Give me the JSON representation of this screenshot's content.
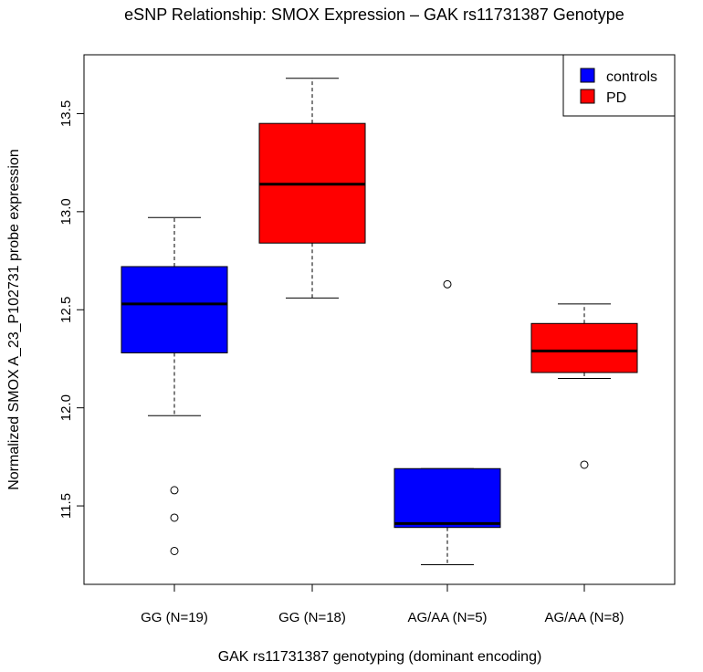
{
  "chart_data": {
    "type": "box",
    "title": "eSNP Relationship: SMOX Expression – GAK rs11731387 Genotype",
    "xlabel": "GAK rs11731387 genotyping (dominant encoding)",
    "ylabel": "Normalized SMOX A_23_P102731 probe expression",
    "ylim": [
      11.1,
      13.8
    ],
    "y_ticks": [
      "11.5",
      "12.0",
      "12.5",
      "13.0",
      "13.5"
    ],
    "categories": [
      "GG (N=19)",
      "GG (N=18)",
      "AG/AA (N=5)",
      "AG/AA (N=8)"
    ],
    "legend": {
      "position": "top-right",
      "items": [
        {
          "label": "controls",
          "color": "#0000ff"
        },
        {
          "label": "PD",
          "color": "#ff0000"
        }
      ]
    },
    "boxes": [
      {
        "category": "GG (N=19)",
        "group": "controls",
        "color": "#0000ff",
        "whisker_low": 11.96,
        "q1": 12.28,
        "median": 12.53,
        "q3": 12.72,
        "whisker_high": 12.97,
        "outliers": [
          11.58,
          11.44,
          11.27
        ]
      },
      {
        "category": "GG (N=18)",
        "group": "PD",
        "color": "#ff0000",
        "whisker_low": 12.56,
        "q1": 12.84,
        "median": 13.14,
        "q3": 13.45,
        "whisker_high": 13.68,
        "outliers": []
      },
      {
        "category": "AG/AA (N=5)",
        "group": "controls",
        "color": "#0000ff",
        "whisker_low": 11.2,
        "q1": 11.39,
        "median": 11.41,
        "q3": 11.69,
        "whisker_high": 11.69,
        "outliers": [
          12.63
        ]
      },
      {
        "category": "AG/AA (N=8)",
        "group": "PD",
        "color": "#ff0000",
        "whisker_low": 12.15,
        "q1": 12.18,
        "median": 12.29,
        "q3": 12.43,
        "whisker_high": 12.53,
        "outliers": [
          11.71
        ]
      }
    ]
  }
}
